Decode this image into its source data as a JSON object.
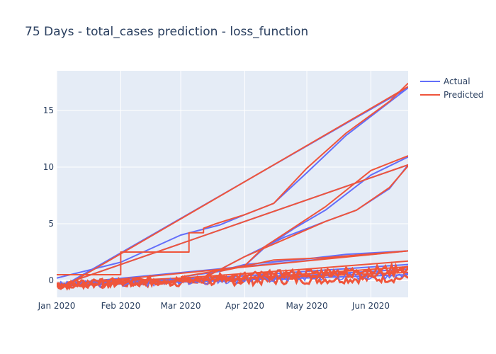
{
  "chart_data": {
    "type": "line",
    "title": "75 Days - total_cases prediction - loss_function",
    "xlabel": "",
    "ylabel": "",
    "x_axis": {
      "type": "date",
      "range": [
        "2020-01-01",
        "2020-06-19"
      ],
      "ticks": [
        {
          "date": "2020-01-01",
          "label": "Jan 2020"
        },
        {
          "date": "2020-02-01",
          "label": "Feb 2020"
        },
        {
          "date": "2020-03-01",
          "label": "Mar 2020"
        },
        {
          "date": "2020-04-01",
          "label": "Apr 2020"
        },
        {
          "date": "2020-05-01",
          "label": "May 2020"
        },
        {
          "date": "2020-06-01",
          "label": "Jun 2020"
        }
      ]
    },
    "y_axis": {
      "range": [
        -1.5,
        18.5
      ],
      "ticks": [
        0,
        5,
        10,
        15
      ]
    },
    "grid": true,
    "legend": "top-right",
    "colors": {
      "Actual": "#636efa",
      "Predicted": "#ef553b",
      "plot_bg": "#e5ecf6"
    },
    "series": [
      {
        "name": "Actual",
        "segments": [
          [
            [
              "2020-01-05",
              -0.4
            ],
            [
              "2020-06-19",
              17.0
            ]
          ],
          [
            [
              "2020-01-05",
              -0.3
            ],
            [
              "2020-06-19",
              10.2
            ]
          ],
          [
            [
              "2020-01-10",
              -0.2
            ],
            [
              "2020-06-19",
              2.6
            ]
          ],
          [
            [
              "2020-01-01",
              0.2
            ],
            [
              "2020-02-01",
              1.6
            ],
            [
              "2020-03-01",
              4.0
            ],
            [
              "2020-03-20",
              4.9
            ],
            [
              "2020-04-01",
              5.8
            ],
            [
              "2020-04-15",
              6.8
            ],
            [
              "2020-05-01",
              9.5
            ],
            [
              "2020-05-20",
              12.8
            ],
            [
              "2020-06-19",
              17.0
            ]
          ],
          [
            [
              "2020-03-01",
              0.3
            ],
            [
              "2020-03-20",
              0.8
            ],
            [
              "2020-04-01",
              1.3
            ],
            [
              "2020-04-10",
              2.8
            ],
            [
              "2020-04-25",
              4.6
            ],
            [
              "2020-05-10",
              6.2
            ],
            [
              "2020-06-01",
              9.3
            ],
            [
              "2020-06-19",
              10.9
            ]
          ],
          [
            [
              "2020-03-10",
              0.0
            ],
            [
              "2020-04-01",
              2.1
            ],
            [
              "2020-04-20",
              3.8
            ],
            [
              "2020-05-10",
              5.2
            ],
            [
              "2020-05-25",
              6.2
            ],
            [
              "2020-06-10",
              8.1
            ],
            [
              "2020-06-19",
              10.2
            ]
          ],
          [
            [
              "2020-03-15",
              0.6
            ],
            [
              "2020-04-01",
              1.4
            ],
            [
              "2020-05-01",
              1.9
            ],
            [
              "2020-05-20",
              2.3
            ],
            [
              "2020-06-19",
              2.6
            ]
          ],
          [
            [
              "2020-01-01",
              -0.3
            ],
            [
              "2020-03-01",
              0.1
            ],
            [
              "2020-04-01",
              0.4
            ],
            [
              "2020-05-01",
              0.8
            ],
            [
              "2020-06-19",
              1.4
            ]
          ],
          [
            [
              "2020-01-01",
              -0.4
            ],
            [
              "2020-04-01",
              0.1
            ],
            [
              "2020-06-19",
              1.0
            ]
          ],
          [
            [
              "2020-01-01",
              -0.5
            ],
            [
              "2020-06-19",
              0.5
            ]
          ]
        ]
      },
      {
        "name": "Predicted",
        "segments": [
          [
            [
              "2020-01-01",
              0.5
            ],
            [
              "2020-02-01",
              0.5
            ],
            [
              "2020-02-01",
              2.5
            ],
            [
              "2020-03-05",
              2.5
            ],
            [
              "2020-03-05",
              4.2
            ],
            [
              "2020-03-12",
              4.2
            ],
            [
              "2020-03-12",
              4.6
            ],
            [
              "2020-03-18",
              5.0
            ],
            [
              "2020-03-25",
              5.4
            ],
            [
              "2020-04-01",
              5.8
            ],
            [
              "2020-04-15",
              6.8
            ],
            [
              "2020-05-01",
              9.9
            ],
            [
              "2020-05-20",
              13.0
            ],
            [
              "2020-06-10",
              15.8
            ],
            [
              "2020-06-19",
              17.4
            ]
          ],
          [
            [
              "2020-01-08",
              -0.2
            ],
            [
              "2020-06-19",
              17.1
            ]
          ],
          [
            [
              "2020-01-05",
              -0.3
            ],
            [
              "2020-06-19",
              10.2
            ]
          ],
          [
            [
              "2020-03-01",
              0.3
            ],
            [
              "2020-03-20",
              0.9
            ],
            [
              "2020-04-01",
              1.3
            ],
            [
              "2020-04-10",
              2.9
            ],
            [
              "2020-04-25",
              4.7
            ],
            [
              "2020-05-10",
              6.5
            ],
            [
              "2020-06-01",
              9.7
            ],
            [
              "2020-06-19",
              11.0
            ]
          ],
          [
            [
              "2020-03-10",
              0.0
            ],
            [
              "2020-04-01",
              2.1
            ],
            [
              "2020-04-20",
              3.6
            ],
            [
              "2020-05-10",
              5.2
            ],
            [
              "2020-05-25",
              6.2
            ],
            [
              "2020-06-10",
              8.2
            ],
            [
              "2020-06-19",
              10.1
            ]
          ],
          [
            [
              "2020-01-15",
              -0.2
            ],
            [
              "2020-06-19",
              2.6
            ]
          ],
          [
            [
              "2020-03-20",
              0.8
            ],
            [
              "2020-04-15",
              1.8
            ],
            [
              "2020-05-10",
              2.0
            ],
            [
              "2020-06-19",
              2.6
            ]
          ],
          [
            [
              "2020-01-01",
              -0.3
            ],
            [
              "2020-03-01",
              0.2
            ],
            [
              "2020-04-01",
              0.6
            ],
            [
              "2020-05-01",
              1.0
            ],
            [
              "2020-06-19",
              1.7
            ]
          ],
          [
            [
              "2020-01-01",
              -0.4
            ],
            [
              "2020-04-01",
              0.2
            ],
            [
              "2020-06-19",
              1.2
            ]
          ],
          [
            [
              "2020-01-01",
              -0.5
            ],
            [
              "2020-06-19",
              0.7
            ]
          ]
        ]
      }
    ]
  }
}
